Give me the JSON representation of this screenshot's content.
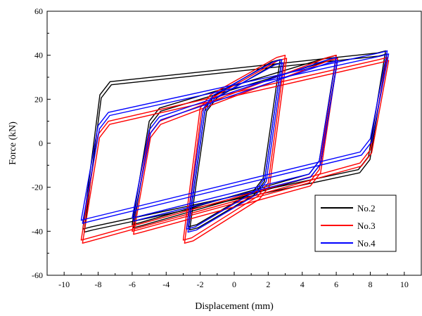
{
  "chart_data": {
    "type": "line",
    "title": "",
    "xlabel": "Displacement (mm)",
    "ylabel": "Force (kN)",
    "xlim": [
      -11,
      11
    ],
    "ylim": [
      -60,
      60
    ],
    "xticks": [
      -10,
      -8,
      -6,
      -4,
      -2,
      0,
      2,
      4,
      6,
      8,
      10
    ],
    "yticks": [
      -60,
      -40,
      -20,
      0,
      20,
      40,
      60
    ],
    "grid": false,
    "legend": "bottom-right",
    "series": [
      {
        "name": "No.2",
        "color": "#000000",
        "loops": [
          {
            "amp": 2.7,
            "fmax": 38,
            "fmin": -38,
            "ykn": 22,
            "ykp": -22
          },
          {
            "amp": 6.0,
            "fmax": 40,
            "fmin": -37,
            "ykn": 16,
            "ykp": -14
          },
          {
            "amp": 8.9,
            "fmax": 42,
            "fmin": -39,
            "ykn": 28,
            "ykp": -12
          }
        ]
      },
      {
        "name": "No.3",
        "color": "#ff0000",
        "loops": [
          {
            "amp": 3.0,
            "fmax": 40,
            "fmin": -44,
            "ykn": 22,
            "ykp": -24
          },
          {
            "amp": 6.0,
            "fmax": 40,
            "fmin": -40,
            "ykn": 10,
            "ykp": -18
          },
          {
            "amp": 9.0,
            "fmax": 39,
            "fmin": -44,
            "ykn": 10,
            "ykp": -9
          }
        ]
      },
      {
        "name": "No.4",
        "color": "#0000ff",
        "loops": [
          {
            "amp": 2.8,
            "fmax": 38,
            "fmin": -39,
            "ykn": 22,
            "ykp": -22
          },
          {
            "amp": 6.0,
            "fmax": 39,
            "fmin": -34,
            "ykn": 12,
            "ykp": -14
          },
          {
            "amp": 9.0,
            "fmax": 42,
            "fmin": -35,
            "ykn": 14,
            "ykp": -4
          }
        ]
      }
    ]
  }
}
